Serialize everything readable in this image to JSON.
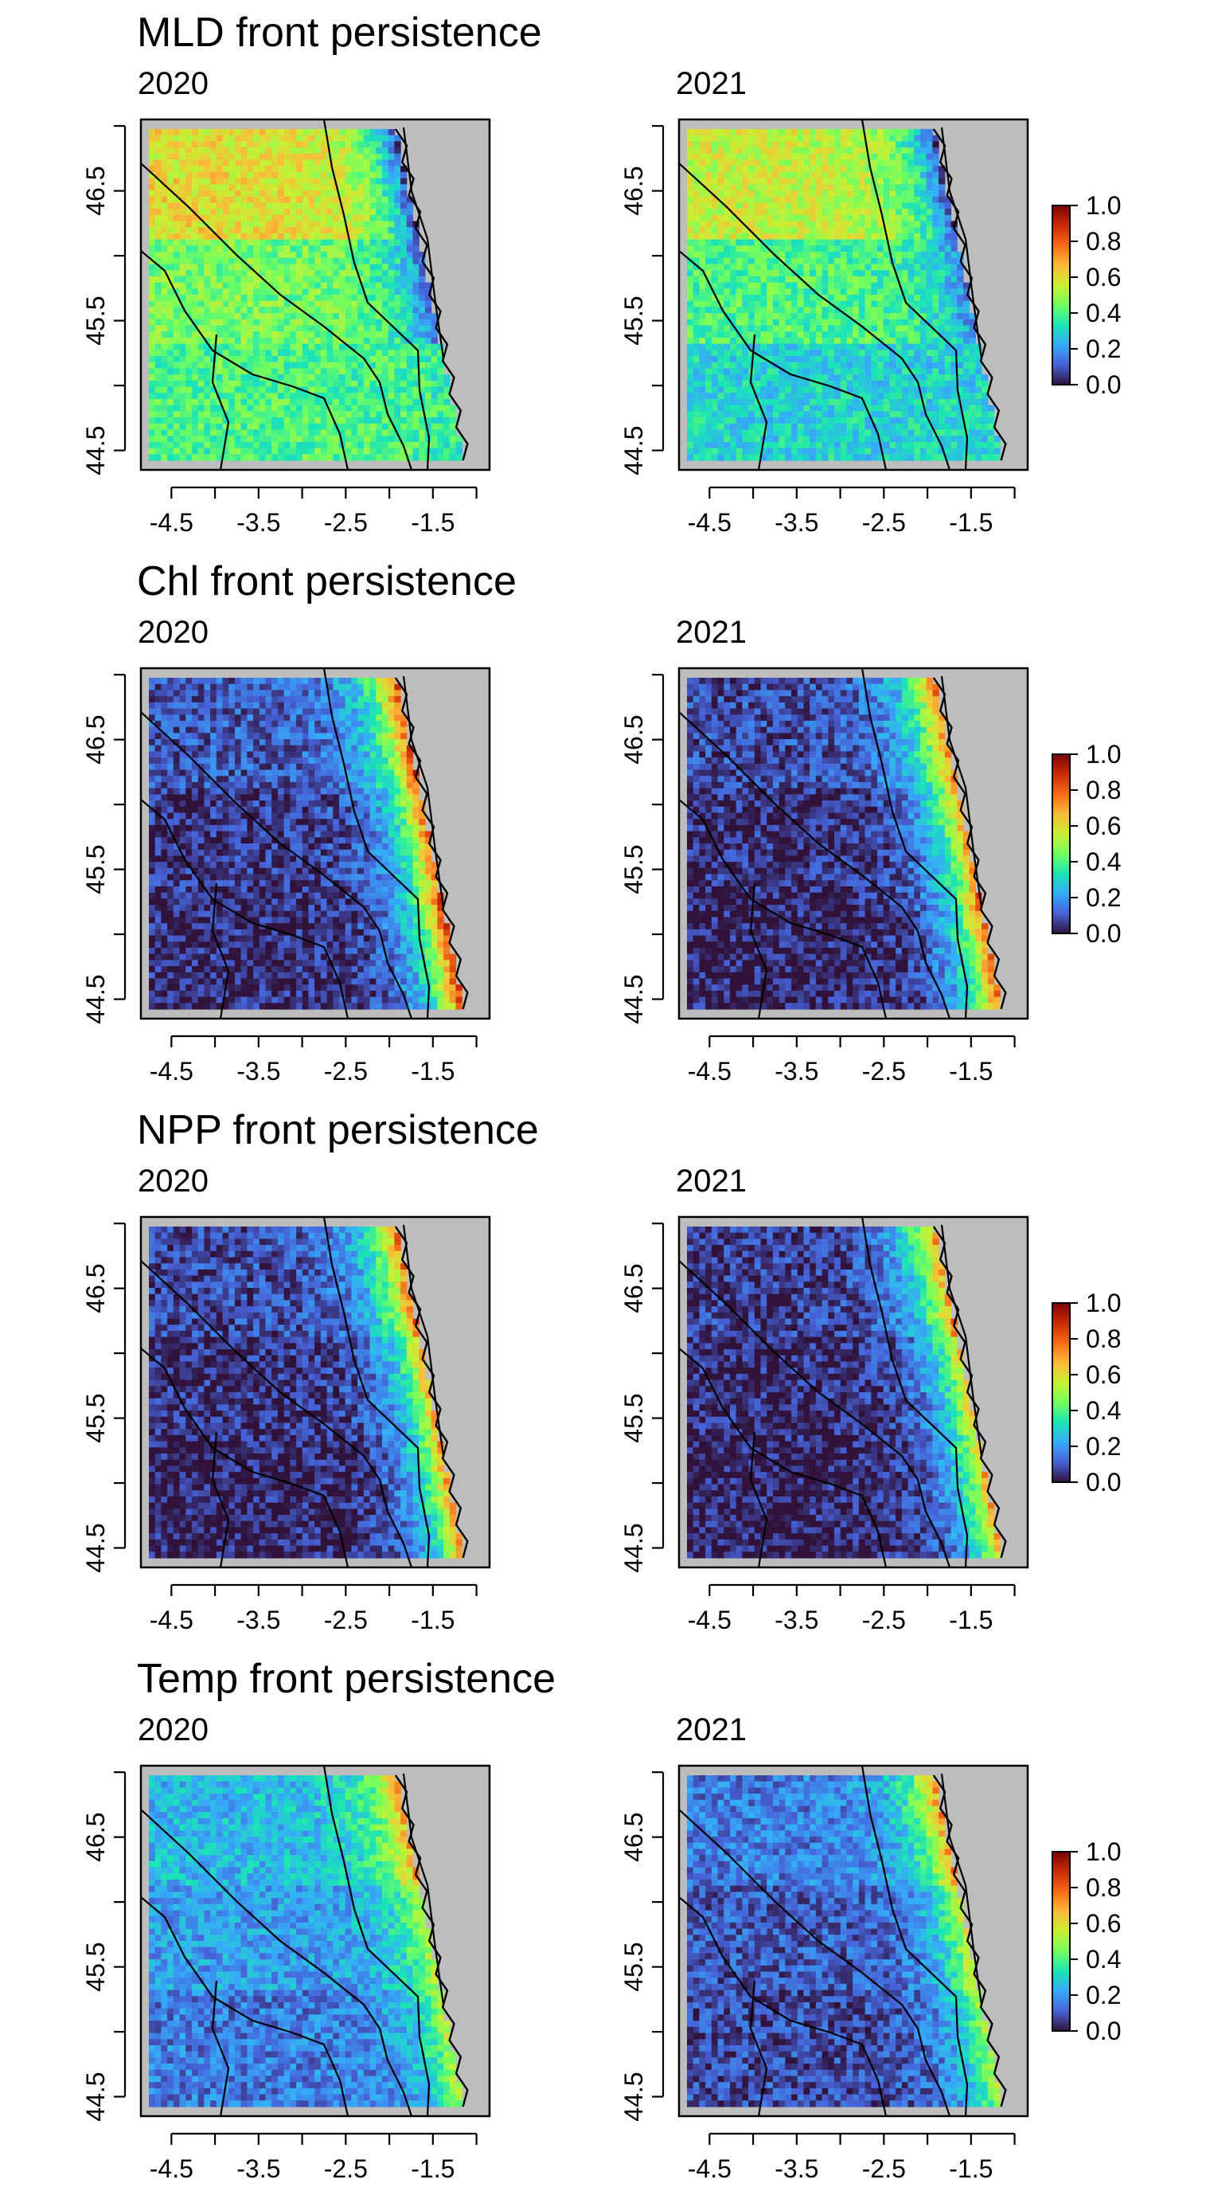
{
  "chart_data": [
    {
      "type": "heatmap",
      "title": "MLD front persistence",
      "panels": [
        {
          "subtitle": "2020",
          "shore_values": [
            0.05,
            0.1,
            0.35
          ],
          "offshore_values": [
            0.6,
            0.45,
            0.4
          ]
        },
        {
          "subtitle": "2021",
          "shore_values": [
            0.05,
            0.15,
            0.3
          ],
          "offshore_values": [
            0.55,
            0.4,
            0.3
          ]
        }
      ],
      "x_ticks": [
        "-4.5",
        "-3.5",
        "-2.5",
        "-1.5"
      ],
      "y_ticks": [
        "44.5",
        "45.5",
        "46.5"
      ],
      "xlim": [
        -4.85,
        -0.85
      ],
      "ylim": [
        44.35,
        47.05
      ],
      "colorbar": {
        "ticks": [
          "0.0",
          "0.2",
          "0.4",
          "0.6",
          "0.8",
          "1.0"
        ],
        "range": [
          0,
          1
        ]
      }
    },
    {
      "type": "heatmap",
      "title": "Chl front persistence",
      "panels": [
        {
          "subtitle": "2020",
          "shore_values": [
            0.85,
            0.8,
            0.9
          ],
          "offshore_values": [
            0.1,
            0.05,
            0.03
          ]
        },
        {
          "subtitle": "2021",
          "shore_values": [
            0.8,
            0.75,
            0.85
          ],
          "offshore_values": [
            0.08,
            0.04,
            0.02
          ]
        }
      ],
      "x_ticks": [
        "-4.5",
        "-3.5",
        "-2.5",
        "-1.5"
      ],
      "y_ticks": [
        "44.5",
        "45.5",
        "46.5"
      ],
      "xlim": [
        -4.85,
        -0.85
      ],
      "ylim": [
        44.35,
        47.05
      ],
      "colorbar": {
        "ticks": [
          "0.0",
          "0.2",
          "0.4",
          "0.6",
          "0.8",
          "1.0"
        ],
        "range": [
          0,
          1
        ]
      }
    },
    {
      "type": "heatmap",
      "title": "NPP front persistence",
      "panels": [
        {
          "subtitle": "2020",
          "shore_values": [
            0.8,
            0.7,
            0.75
          ],
          "offshore_values": [
            0.08,
            0.04,
            0.02
          ]
        },
        {
          "subtitle": "2021",
          "shore_values": [
            0.75,
            0.65,
            0.7
          ],
          "offshore_values": [
            0.06,
            0.03,
            0.02
          ]
        }
      ],
      "x_ticks": [
        "-4.5",
        "-3.5",
        "-2.5",
        "-1.5"
      ],
      "y_ticks": [
        "44.5",
        "45.5",
        "46.5"
      ],
      "xlim": [
        -4.85,
        -0.85
      ],
      "ylim": [
        44.35,
        47.05
      ],
      "colorbar": {
        "ticks": [
          "0.0",
          "0.2",
          "0.4",
          "0.6",
          "0.8",
          "1.0"
        ],
        "range": [
          0,
          1
        ]
      }
    },
    {
      "type": "heatmap",
      "title": "Temp front persistence",
      "panels": [
        {
          "subtitle": "2020",
          "shore_values": [
            0.7,
            0.55,
            0.55
          ],
          "offshore_values": [
            0.25,
            0.2,
            0.15
          ]
        },
        {
          "subtitle": "2021",
          "shore_values": [
            0.75,
            0.6,
            0.55
          ],
          "offshore_values": [
            0.15,
            0.1,
            0.08
          ]
        }
      ],
      "x_ticks": [
        "-4.5",
        "-3.5",
        "-2.5",
        "-1.5"
      ],
      "y_ticks": [
        "44.5",
        "45.5",
        "46.5"
      ],
      "xlim": [
        -4.85,
        -0.85
      ],
      "ylim": [
        44.35,
        47.05
      ],
      "colorbar": {
        "ticks": [
          "0.0",
          "0.2",
          "0.4",
          "0.6",
          "0.8",
          "1.0"
        ],
        "range": [
          0,
          1
        ]
      }
    }
  ],
  "colors": {
    "land": "#bdbdbd",
    "colormap": [
      "#30123b",
      "#4662d7",
      "#36aaf9",
      "#1ae4b6",
      "#72fe5e",
      "#c8ef34",
      "#faba39",
      "#f66b19",
      "#ca2a04",
      "#7a0403"
    ]
  }
}
